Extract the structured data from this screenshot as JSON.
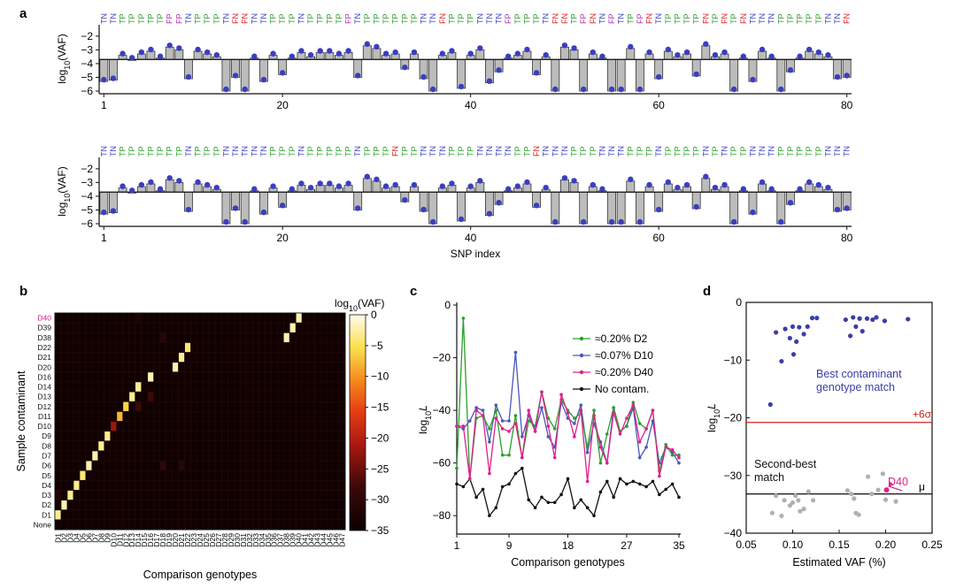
{
  "panel_labels": {
    "a": "a",
    "b": "b",
    "c": "c",
    "d": "d"
  },
  "chart_data": [
    {
      "id": "panel-a-top",
      "type": "bar",
      "description_none": "",
      "ylabel": "log10(VAF)",
      "xticks": [
        1,
        20,
        40,
        60,
        80
      ],
      "yticks": [
        -2,
        -3,
        -4,
        -5,
        -6
      ],
      "ylim": [
        -6,
        -1.3
      ],
      "threshold": -3.7,
      "call_colors": {
        "TN": "#3a3ec0",
        "TP": "#2aa02a",
        "FP": "#b032b0",
        "FN": "#d62020"
      },
      "calls": [
        "TN",
        "TN",
        "TP",
        "TP",
        "TP",
        "TP",
        "TP",
        "FP",
        "FP",
        "TN",
        "TP",
        "TP",
        "TP",
        "TN",
        "FN",
        "FN",
        "TN",
        "TN",
        "TP",
        "TP",
        "TP",
        "TN",
        "TP",
        "TP",
        "TP",
        "TP",
        "FP",
        "TN",
        "TP",
        "TP",
        "TP",
        "TP",
        "TP",
        "TP",
        "TN",
        "TN",
        "FN",
        "TP",
        "TP",
        "TP",
        "TN",
        "TN",
        "TN",
        "FP",
        "TP",
        "TP",
        "TP",
        "TN",
        "FN",
        "FN",
        "TP",
        "FP",
        "FN",
        "TN",
        "FP",
        "TN",
        "TP",
        "FP",
        "FN",
        "TN",
        "TP",
        "TP",
        "TP",
        "TP",
        "FN",
        "TP",
        "FN",
        "TP",
        "FN",
        "TN",
        "TN",
        "TN",
        "TP",
        "TP",
        "TP",
        "TP",
        "TP",
        "TN",
        "TN",
        "FN"
      ],
      "values": [
        -5.3,
        -5.2,
        -3.4,
        -3.7,
        -3.3,
        -3.1,
        -3.6,
        -2.8,
        -3.0,
        -5.1,
        -3.1,
        -3.3,
        -3.5,
        -6.0,
        -5.0,
        -6.0,
        -3.6,
        -5.3,
        -3.4,
        -4.8,
        -3.6,
        -3.2,
        -3.5,
        -3.2,
        -3.2,
        -3.4,
        -3.2,
        -5.0,
        -2.7,
        -2.9,
        -3.4,
        -3.3,
        -4.4,
        -3.3,
        -5.1,
        -6.0,
        -3.4,
        -3.2,
        -5.8,
        -3.4,
        -3.0,
        -5.4,
        -4.6,
        -3.6,
        -3.4,
        -3.1,
        -4.8,
        -3.5,
        -6.0,
        -2.8,
        -3.0,
        -6.0,
        -3.3,
        -3.6,
        -6.0,
        -6.0,
        -2.9,
        -6.0,
        -3.3,
        -5.1,
        -3.1,
        -3.5,
        -3.3,
        -4.9,
        -2.7,
        -3.5,
        -3.3,
        -6.0,
        -3.6,
        -5.3,
        -3.1,
        -3.6,
        -6.0,
        -4.6,
        -3.6,
        -3.1,
        -3.3,
        -3.5,
        -5.1,
        -5.0
      ]
    },
    {
      "id": "panel-a-bottom",
      "type": "bar",
      "ylabel": "log10(VAF)",
      "xlabel": "SNP index",
      "xticks": [
        1,
        20,
        40,
        60,
        80
      ],
      "yticks": [
        -2,
        -3,
        -4,
        -5,
        -6
      ],
      "ylim": [
        -6,
        -1.3
      ],
      "threshold": -3.7,
      "calls": [
        "TN",
        "TN",
        "TP",
        "TP",
        "TP",
        "TP",
        "TP",
        "TP",
        "TP",
        "TN",
        "TP",
        "TP",
        "TP",
        "TN",
        "TN",
        "TN",
        "TN",
        "TN",
        "TP",
        "TP",
        "TP",
        "TN",
        "TP",
        "TP",
        "TP",
        "TP",
        "TP",
        "TN",
        "TP",
        "TP",
        "TP",
        "FN",
        "TP",
        "TP",
        "TN",
        "TN",
        "TN",
        "TP",
        "TP",
        "TP",
        "TN",
        "TN",
        "TN",
        "TN",
        "TP",
        "TP",
        "FN",
        "TN",
        "TN",
        "TN",
        "TP",
        "TP",
        "TP",
        "TN",
        "TN",
        "TN",
        "TP",
        "TP",
        "TP",
        "TN",
        "TP",
        "TP",
        "TP",
        "TP",
        "TN",
        "TP",
        "TN",
        "TP",
        "TP",
        "TN",
        "TN",
        "TN",
        "TP",
        "TP",
        "TP",
        "TP",
        "TP",
        "TN",
        "TN",
        "TN"
      ],
      "values": [
        -5.3,
        -5.2,
        -3.4,
        -3.7,
        -3.3,
        -3.1,
        -3.6,
        -2.8,
        -3.0,
        -5.1,
        -3.1,
        -3.3,
        -3.5,
        -6.0,
        -5.0,
        -6.0,
        -3.6,
        -5.3,
        -3.4,
        -4.8,
        -3.6,
        -3.2,
        -3.5,
        -3.2,
        -3.2,
        -3.4,
        -3.2,
        -5.0,
        -2.7,
        -2.9,
        -3.4,
        -3.3,
        -4.4,
        -3.3,
        -5.1,
        -6.0,
        -3.4,
        -3.2,
        -5.8,
        -3.4,
        -3.0,
        -5.4,
        -4.6,
        -3.6,
        -3.4,
        -3.1,
        -4.8,
        -3.5,
        -6.0,
        -2.8,
        -3.0,
        -6.0,
        -3.3,
        -3.6,
        -6.0,
        -6.0,
        -2.9,
        -6.0,
        -3.3,
        -5.1,
        -3.1,
        -3.5,
        -3.3,
        -4.9,
        -2.7,
        -3.5,
        -3.3,
        -6.0,
        -3.6,
        -5.3,
        -3.1,
        -3.6,
        -6.0,
        -4.6,
        -3.6,
        -3.1,
        -3.3,
        -3.5,
        -5.1,
        -5.0
      ]
    },
    {
      "id": "panel-b",
      "type": "heatmap",
      "ylabel": "Sample contaminant",
      "xlabel": "Comparison genotypes",
      "colorbar_label": "log10(VAF)",
      "colorbar_ticks": [
        0,
        -5,
        -10,
        -15,
        -20,
        -25,
        -30,
        -35
      ],
      "clim": [
        -35,
        0
      ],
      "rows": [
        "D40",
        "D39",
        "D38",
        "D22",
        "D21",
        "D20",
        "D16",
        "D14",
        "D13",
        "D12",
        "D11",
        "D10",
        "D9",
        "D8",
        "D7",
        "D6",
        "D5",
        "D4",
        "D3",
        "D2",
        "D1",
        "None"
      ],
      "highlight_row": "D40",
      "highlight_color": "#d6198a",
      "cols": [
        "D1",
        "D2",
        "D3",
        "D4",
        "D5",
        "D6",
        "D7",
        "D8",
        "D9",
        "D10",
        "D11",
        "D12",
        "D13",
        "D14",
        "D15",
        "D16",
        "D17",
        "D18",
        "D19",
        "D20",
        "D21",
        "D22",
        "D23",
        "D24",
        "D25",
        "D26",
        "D27",
        "D28",
        "D29",
        "D30",
        "D31",
        "D32",
        "D33",
        "D34",
        "D35",
        "D36",
        "D37",
        "D38",
        "D39",
        "D40",
        "D41",
        "D42",
        "D43",
        "D44",
        "D45",
        "D46",
        "D47"
      ],
      "matches": [
        {
          "row": "D40",
          "col": "D40",
          "value": -2
        },
        {
          "row": "D39",
          "col": "D39",
          "value": -2
        },
        {
          "row": "D38",
          "col": "D38",
          "value": -2
        },
        {
          "row": "D22",
          "col": "D22",
          "value": -4
        },
        {
          "row": "D21",
          "col": "D21",
          "value": -3
        },
        {
          "row": "D20",
          "col": "D20",
          "value": -2
        },
        {
          "row": "D16",
          "col": "D16",
          "value": -2
        },
        {
          "row": "D14",
          "col": "D14",
          "value": -3
        },
        {
          "row": "D13",
          "col": "D13",
          "value": -3
        },
        {
          "row": "D12",
          "col": "D12",
          "value": -6
        },
        {
          "row": "D11",
          "col": "D11",
          "value": -8
        },
        {
          "row": "D10",
          "col": "D10",
          "value": -22
        },
        {
          "row": "D9",
          "col": "D9",
          "value": -3
        },
        {
          "row": "D8",
          "col": "D8",
          "value": -3
        },
        {
          "row": "D7",
          "col": "D7",
          "value": -2
        },
        {
          "row": "D6",
          "col": "D6",
          "value": -2
        },
        {
          "row": "D5",
          "col": "D5",
          "value": -4
        },
        {
          "row": "D4",
          "col": "D4",
          "value": -3
        },
        {
          "row": "D3",
          "col": "D3",
          "value": -3
        },
        {
          "row": "D2",
          "col": "D2",
          "value": -2
        },
        {
          "row": "D1",
          "col": "D1",
          "value": -3
        }
      ],
      "secondary": [
        {
          "row": "D12",
          "col": "D14",
          "value": -28
        },
        {
          "row": "D14",
          "col": "D14",
          "value": -3
        },
        {
          "row": "D13",
          "col": "D16",
          "value": -28
        },
        {
          "row": "D6",
          "col": "D18",
          "value": -30
        },
        {
          "row": "D6",
          "col": "D21",
          "value": -31
        },
        {
          "row": "D38",
          "col": "D18",
          "value": -31
        },
        {
          "row": "D3",
          "col": "D1",
          "value": -31
        },
        {
          "row": "D40",
          "col": "D14",
          "value": -32
        }
      ],
      "background_value": -34
    },
    {
      "id": "panel-c",
      "type": "line",
      "ylabel": "log10L",
      "xlabel": "Comparison genotypes",
      "xticks": [
        1,
        9,
        18,
        27,
        35
      ],
      "yticks": [
        0,
        -20,
        -40,
        -60,
        -80
      ],
      "xlim": [
        1,
        35
      ],
      "ylim": [
        -87,
        0
      ],
      "x": [
        1,
        2,
        3,
        4,
        5,
        6,
        7,
        8,
        9,
        10,
        11,
        12,
        13,
        14,
        15,
        16,
        17,
        18,
        19,
        20,
        21,
        22,
        23,
        24,
        25,
        26,
        27,
        28,
        29,
        30,
        31,
        32,
        33,
        34,
        35
      ],
      "legend_position": "top-right",
      "series": [
        {
          "name": "≈0.20% D2",
          "color": "#2aa02a",
          "values": [
            -62,
            -5,
            -66,
            -43,
            -42,
            -47,
            -40,
            -57,
            -57,
            -42,
            -58,
            -44,
            -46,
            -33,
            -43,
            -47,
            -36,
            -40,
            -43,
            -41,
            -54,
            -40,
            -60,
            -49,
            -39,
            -48,
            -46,
            -37,
            -45,
            -47,
            -40,
            -63,
            -53,
            -57,
            -57
          ]
        },
        {
          "name": "≈0.07% D10",
          "color": "#4b57b8",
          "values": [
            -46,
            -47,
            -44,
            -39,
            -40,
            -52,
            -38,
            -44,
            -44,
            -18,
            -50,
            -42,
            -48,
            -39,
            -50,
            -54,
            -37,
            -43,
            -45,
            -38,
            -56,
            -45,
            -52,
            -60,
            -39,
            -48,
            -46,
            -39,
            -58,
            -54,
            -44,
            -60,
            -54,
            -56,
            -60
          ]
        },
        {
          "name": "≈0.20% D40",
          "color": "#e0208a",
          "values": [
            -46,
            -46,
            -66,
            -40,
            -42,
            -64,
            -43,
            -47,
            -48,
            -45,
            -58,
            -40,
            -48,
            -33,
            -46,
            -58,
            -34,
            -41,
            -50,
            -40,
            -67,
            -42,
            -54,
            -60,
            -41,
            -49,
            -43,
            -38,
            -52,
            -47,
            -40,
            -65,
            -54,
            -55,
            -58
          ]
        },
        {
          "name": "No contam.",
          "color": "#111111",
          "values": [
            -68,
            -69,
            -66,
            -73,
            -70,
            -80,
            -77,
            -69,
            -68,
            -64,
            -62,
            -74,
            -77,
            -73,
            -75,
            -75,
            -72,
            -66,
            -77,
            -74,
            -77,
            -80,
            -71,
            -67,
            -73,
            -66,
            -68,
            -67,
            -68,
            -69,
            -67,
            -72,
            -70,
            -68,
            -73
          ]
        }
      ]
    },
    {
      "id": "panel-d",
      "type": "scatter",
      "ylabel": "log10L",
      "xlabel": "Estimated VAF (%)",
      "xticks": [
        0.05,
        0.1,
        0.15,
        0.2,
        0.25
      ],
      "xtick_labels": [
        "0.05",
        "0.10",
        "0.15",
        "0.20",
        "0.25"
      ],
      "yticks": [
        0,
        -10,
        -20,
        -30,
        -40
      ],
      "xlim": [
        0.05,
        0.25
      ],
      "ylim": [
        -40,
        0
      ],
      "annotation_best": "Best contaminant\ngenotype match",
      "annotation_second": "Second-best\nmatch",
      "threshold_label": "+6σ",
      "threshold_value": -20.8,
      "mu_label": "μ",
      "mu_value": -33.2,
      "highlight_label": "D40",
      "highlight_point": {
        "x": 0.201,
        "y": -32.5
      },
      "series": [
        {
          "name": "best",
          "color": "#3a3ea8",
          "points": [
            [
              0.082,
              -5.2
            ],
            [
              0.088,
              -10.2
            ],
            [
              0.092,
              -4.6
            ],
            [
              0.097,
              -6.2
            ],
            [
              0.1,
              -4.2
            ],
            [
              0.101,
              -9.0
            ],
            [
              0.104,
              -6.8
            ],
            [
              0.107,
              -4.3
            ],
            [
              0.112,
              -5.5
            ],
            [
              0.116,
              -4.2
            ],
            [
              0.121,
              -2.7
            ],
            [
              0.126,
              -2.7
            ],
            [
              0.157,
              -3.0
            ],
            [
              0.162,
              -5.8
            ],
            [
              0.165,
              -2.6
            ],
            [
              0.168,
              -4.2
            ],
            [
              0.172,
              -2.8
            ],
            [
              0.175,
              -5.0
            ],
            [
              0.18,
              -2.8
            ],
            [
              0.186,
              -3.0
            ],
            [
              0.19,
              -2.6
            ],
            [
              0.199,
              -3.2
            ],
            [
              0.224,
              -2.9
            ],
            [
              0.076,
              -17.7
            ]
          ]
        },
        {
          "name": "second",
          "color": "#b0b0b0",
          "points": [
            [
              0.078,
              -36.5
            ],
            [
              0.082,
              -33.5
            ],
            [
              0.088,
              -37.0
            ],
            [
              0.091,
              -34.3
            ],
            [
              0.097,
              -35.2
            ],
            [
              0.1,
              -34.7
            ],
            [
              0.103,
              -33.5
            ],
            [
              0.106,
              -34.3
            ],
            [
              0.108,
              -36.2
            ],
            [
              0.112,
              -35.8
            ],
            [
              0.117,
              -32.8
            ],
            [
              0.122,
              -34.3
            ],
            [
              0.159,
              -32.6
            ],
            [
              0.163,
              -33.2
            ],
            [
              0.166,
              -34.0
            ],
            [
              0.168,
              -36.5
            ],
            [
              0.171,
              -36.8
            ],
            [
              0.181,
              -30.2
            ],
            [
              0.185,
              -33.2
            ],
            [
              0.192,
              -32.5
            ],
            [
              0.197,
              -29.7
            ],
            [
              0.2,
              -34.2
            ],
            [
              0.211,
              -34.5
            ]
          ]
        }
      ]
    }
  ]
}
